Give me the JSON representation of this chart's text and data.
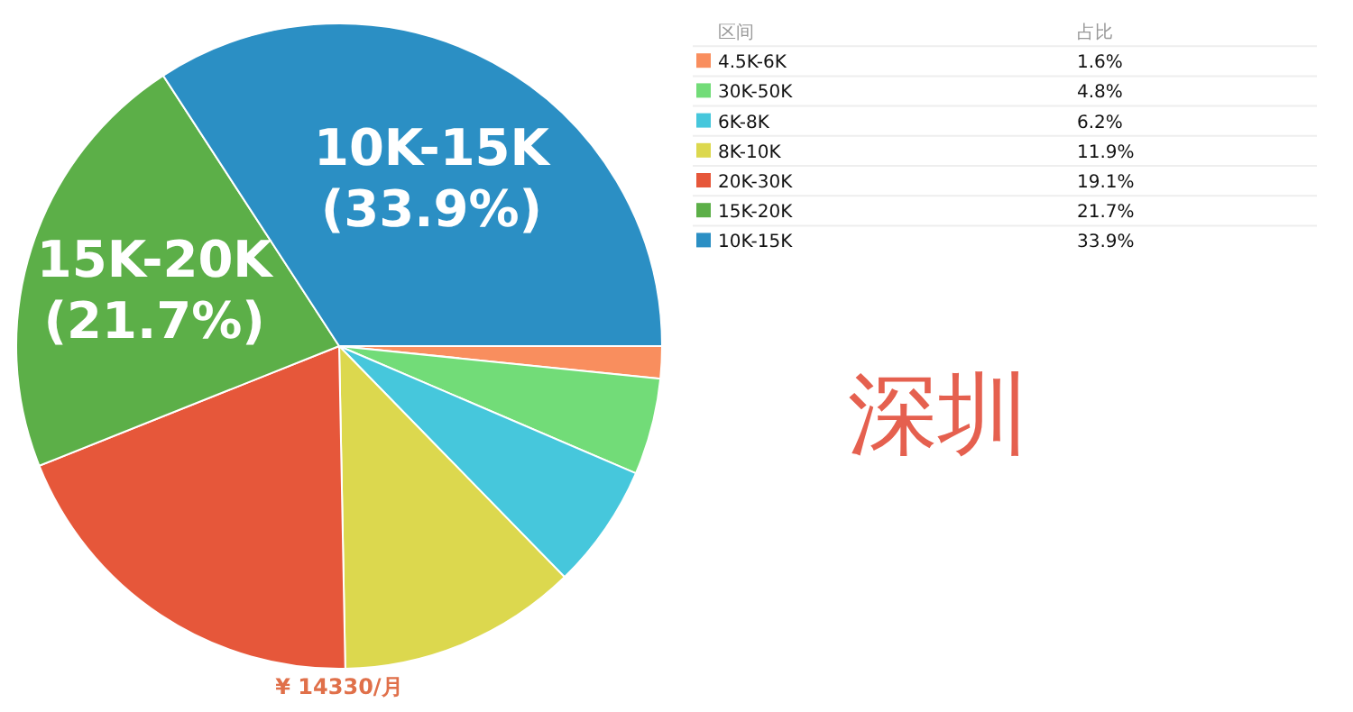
{
  "chart_data": {
    "type": "pie",
    "title": "深圳",
    "categories": [
      "4.5K-6K",
      "30K-50K",
      "6K-8K",
      "8K-10K",
      "20K-30K",
      "15K-20K",
      "10K-15K"
    ],
    "values": [
      1.6,
      4.8,
      6.2,
      11.9,
      19.1,
      21.7,
      33.9
    ],
    "colors": [
      "#f98e5e",
      "#72dc78",
      "#46c7dc",
      "#dcd84e",
      "#e6573a",
      "#5caf48",
      "#2b8fc4"
    ],
    "value_labels": [
      "1.6%",
      "4.8%",
      "6.2%",
      "11.9%",
      "19.1%",
      "21.7%",
      "33.9%"
    ],
    "data_labels": true,
    "legend": "top right",
    "legend_title": "区间",
    "annotations": [
      "占比",
      "¥ 14330/月",
      {
        "text": "15K-20K",
        "x": "15K-20K"
      },
      {
        "text": "(21.7%)",
        "x": "15K-20K"
      },
      {
        "text": "10K-15K",
        "x": "10K-15K"
      },
      {
        "text": "(33.9%)",
        "x": "10K-15K"
      }
    ]
  }
}
